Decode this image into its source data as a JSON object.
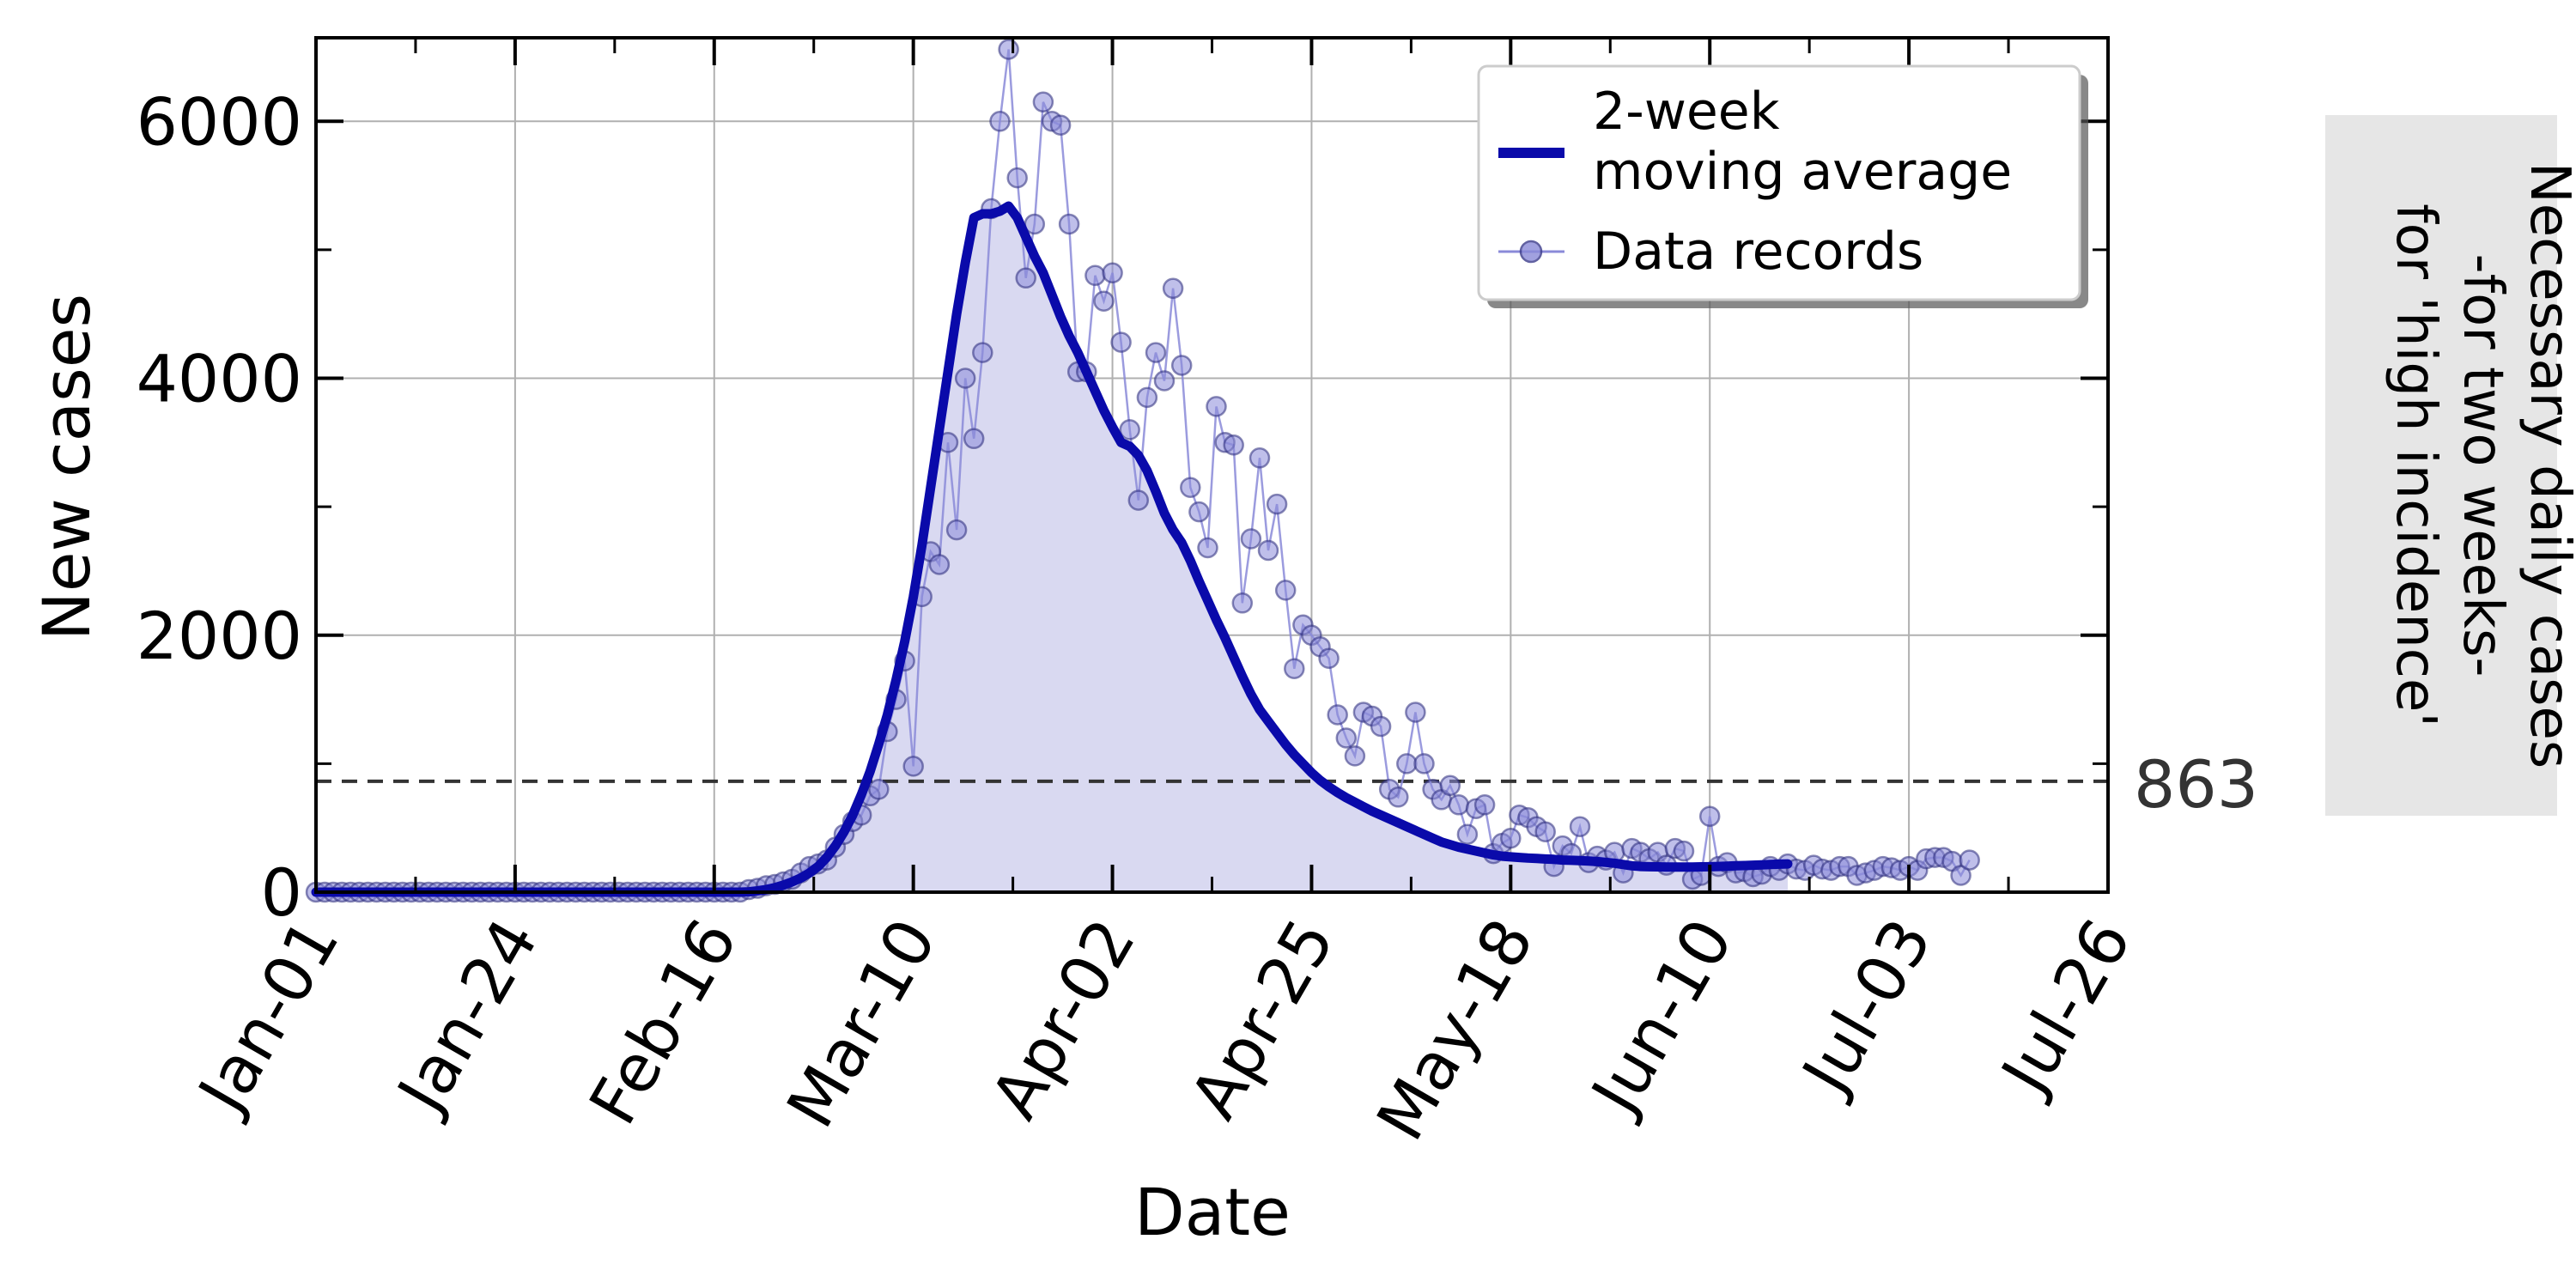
{
  "chart_data": {
    "type": "line",
    "xlabel": "Date",
    "ylabel": "New cases",
    "x_ticks": [
      "Jan-01",
      "Jan-24",
      "Feb-16",
      "Mar-10",
      "Apr-02",
      "Apr-25",
      "May-18",
      "Jun-10",
      "Jul-03",
      "Jul-26"
    ],
    "y_ticks": [
      0,
      2000,
      4000,
      6000
    ],
    "xlim": [
      "2020-01-01",
      "2020-07-26"
    ],
    "ylim": [
      0,
      6650
    ],
    "grid": true,
    "legend": "top-right",
    "reference_line": {
      "value": 863,
      "label": "863",
      "style": "dashed"
    },
    "side_note": [
      "Necessary daily cases",
      "-for two weeks-",
      "for 'high incidence'"
    ],
    "colors": {
      "line": "#0a0aaa",
      "fill": "#d9d9f1",
      "marker": "#8a8ad8",
      "ref": "#333333",
      "note_bg": "#e6e6e6",
      "grid": "#b0b0b0"
    },
    "series": [
      {
        "name": "2-week moving average",
        "style": "thick-line",
        "x_start": "2020-01-01",
        "step_days": 1,
        "values": [
          0,
          0,
          0,
          0,
          0,
          0,
          0,
          0,
          0,
          0,
          0,
          0,
          0,
          0,
          0,
          0,
          0,
          0,
          0,
          0,
          0,
          0,
          0,
          0,
          0,
          0,
          0,
          0,
          0,
          0,
          0,
          0,
          0,
          0,
          0,
          0,
          0,
          0,
          0,
          0,
          0,
          0,
          0,
          0,
          0,
          0,
          0,
          0,
          0,
          0,
          3,
          10,
          20,
          35,
          55,
          80,
          110,
          150,
          200,
          270,
          360,
          470,
          600,
          760,
          940,
          1150,
          1380,
          1650,
          1950,
          2300,
          2700,
          3150,
          3600,
          4050,
          4500,
          4900,
          5250,
          5280,
          5280,
          5300,
          5340,
          5250,
          5100,
          4950,
          4820,
          4650,
          4480,
          4330,
          4200,
          4050,
          3900,
          3750,
          3620,
          3500,
          3470,
          3400,
          3280,
          3120,
          2950,
          2820,
          2720,
          2580,
          2420,
          2270,
          2120,
          1980,
          1830,
          1680,
          1540,
          1420,
          1330,
          1240,
          1150,
          1070,
          1000,
          930,
          870,
          820,
          775,
          735,
          700,
          665,
          630,
          600,
          570,
          540,
          510,
          480,
          450,
          420,
          390,
          370,
          350,
          335,
          320,
          305,
          290,
          280,
          275,
          270,
          265,
          262,
          258,
          255,
          250,
          248,
          245,
          242,
          238,
          232,
          225,
          215,
          205,
          200,
          198,
          197,
          196,
          195,
          195,
          196,
          197,
          198,
          200,
          202,
          205,
          207,
          210,
          212,
          215,
          218,
          220
        ]
      },
      {
        "name": "Data records",
        "style": "line-markers",
        "x_start": "2020-01-01",
        "step_days": 1,
        "values": [
          0,
          0,
          0,
          0,
          0,
          0,
          0,
          0,
          0,
          0,
          0,
          0,
          0,
          0,
          0,
          0,
          0,
          0,
          0,
          0,
          0,
          0,
          0,
          0,
          0,
          0,
          0,
          0,
          0,
          0,
          0,
          0,
          0,
          0,
          0,
          0,
          0,
          0,
          0,
          0,
          0,
          0,
          0,
          0,
          0,
          0,
          0,
          0,
          0,
          0,
          20,
          30,
          50,
          60,
          80,
          100,
          150,
          200,
          220,
          250,
          350,
          450,
          550,
          600,
          750,
          800,
          1250,
          1500,
          1800,
          980,
          2300,
          2650,
          2550,
          3500,
          2820,
          4000,
          3530,
          4200,
          5320,
          6000,
          6560,
          5560,
          4780,
          5200,
          6150,
          6000,
          5970,
          5200,
          4050,
          4050,
          4800,
          4600,
          4820,
          4280,
          3600,
          3050,
          3850,
          4200,
          3980,
          4700,
          4100,
          3150,
          2960,
          2680,
          3780,
          3500,
          3480,
          2250,
          2750,
          3380,
          2660,
          3020,
          2350,
          1740,
          2080,
          2000,
          1910,
          1820,
          1380,
          1200,
          1060,
          1400,
          1370,
          1290,
          800,
          740,
          1000,
          1400,
          1000,
          800,
          720,
          830,
          680,
          450,
          650,
          680,
          300,
          380,
          420,
          600,
          580,
          510,
          470,
          200,
          360,
          300,
          510,
          230,
          280,
          250,
          310,
          150,
          340,
          310,
          260,
          310,
          210,
          340,
          320,
          100,
          130,
          590,
          200,
          230,
          150,
          160,
          120,
          140,
          200,
          170,
          220,
          180,
          170,
          210,
          180,
          170,
          200,
          200,
          130,
          150,
          170,
          200,
          190,
          170,
          200,
          170,
          260,
          270,
          270,
          240,
          130,
          250
        ]
      }
    ]
  }
}
